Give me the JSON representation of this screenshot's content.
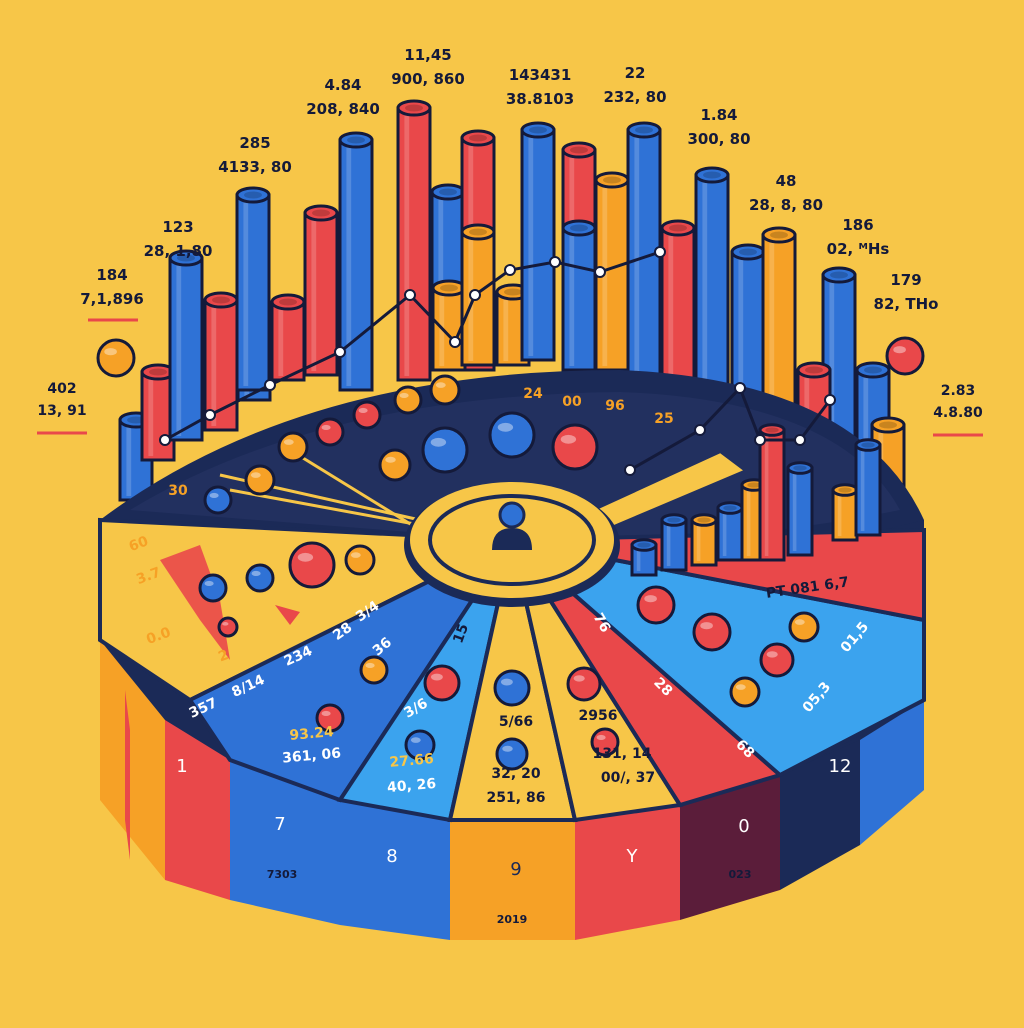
{
  "palette": {
    "background": "#F7C648",
    "blue": "#2F72D6",
    "light_blue": "#3BA3EE",
    "red": "#E9484A",
    "orange": "#F6A126",
    "yellow": "#F7C648",
    "navy": "#1B2A57",
    "ink": "#141A3A"
  },
  "bar_labels": [
    {
      "line1": "184",
      "line2": "7,1,896"
    },
    {
      "line1": "123",
      "line2": "28, 1,80"
    },
    {
      "line1": "285",
      "line2": "4133, 80"
    },
    {
      "line1": "4.84",
      "line2": "208, 840"
    },
    {
      "line1": "11,45",
      "line2": "900, 860"
    },
    {
      "line1": "143431",
      "line2": "38.8103"
    },
    {
      "line1": "22",
      "line2": "232, 80"
    },
    {
      "line1": "1.84",
      "line2": "300, 80"
    },
    {
      "line1": "48",
      "line2": "28, 8, 80"
    },
    {
      "line1": "186",
      "line2": "02, ᴹHs"
    },
    {
      "line1": "179",
      "line2": "82, THo"
    }
  ],
  "side_labels": {
    "left": {
      "line1": "402",
      "line2": "13, 91"
    },
    "right": {
      "line1": "2.83",
      "line2": "4.8.80"
    }
  },
  "top_face_numbers": [
    "24",
    "00",
    "96",
    "25",
    "30"
  ],
  "slice_texts": [
    "60",
    "3.7",
    "0.0",
    "2",
    "234",
    "8/14",
    "357",
    "3/4",
    "28",
    "93.24",
    "361, 06",
    "36",
    "3/6",
    "27.66",
    "40, 26",
    "15",
    "5/66",
    "32, 20",
    "251, 86",
    "2956",
    "131, 14",
    "00/, 37",
    "76",
    "28",
    "68",
    "PT 081 6,7",
    "01,5",
    "05,3"
  ],
  "side_numbers": [
    "1",
    "7",
    "8",
    "9",
    "Y",
    "0",
    "12"
  ],
  "bottom_labels": {
    "left": "7303",
    "center": "2019",
    "right": "023"
  }
}
